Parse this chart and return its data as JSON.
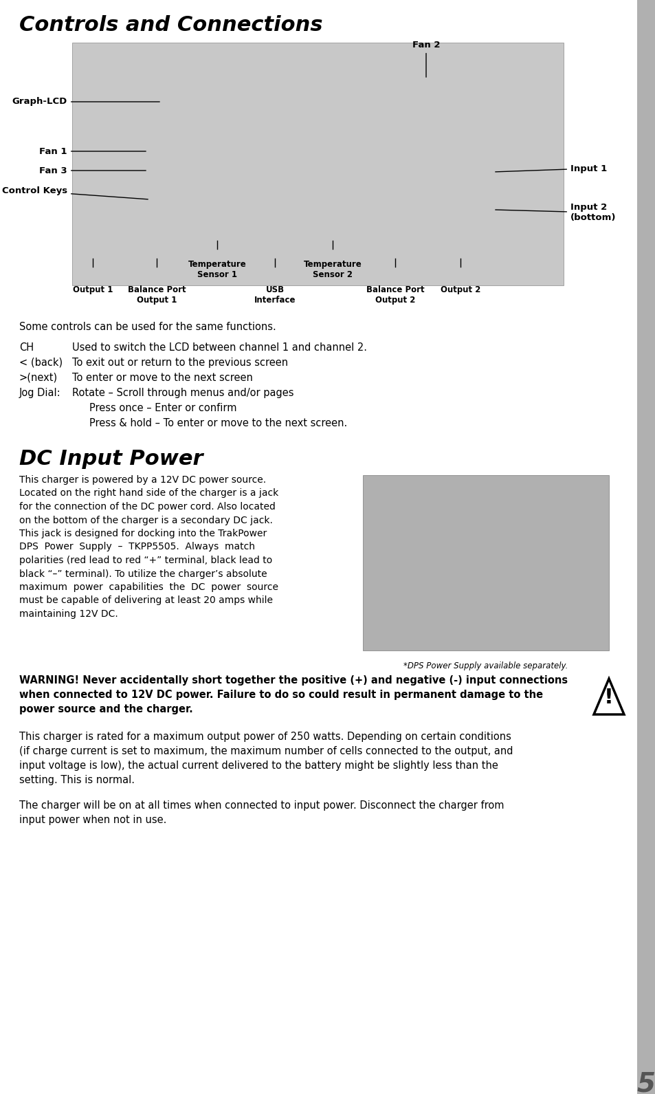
{
  "page_bg": "#ffffff",
  "sidebar_color": "#b0b0b0",
  "page_number": "5",
  "section1_title": "Controls and Connections",
  "section2_title": "DC Input Power",
  "controls_text_intro": "Some controls can be used for the same functions.",
  "ch_label": "CH",
  "ch_text": "Used to switch the LCD between channel 1 and channel 2.",
  "back_label": "< (back)",
  "back_text": "To exit out or return to the previous screen",
  "next_label": ">(next)",
  "next_text": "To enter or move to the next screen",
  "jog_label": "Jog Dial:",
  "jog_line1": "Rotate – Scroll through menus and/or pages",
  "jog_line2": "Press once – Enter or confirm",
  "jog_line3": "Press & hold – To enter or move to the next screen.",
  "dc_para1_lines": [
    "This charger is powered by a 12V DC power source.",
    "Located on the right hand side of the charger is a jack",
    "for the connection of the DC power cord. Also located",
    "on the bottom of the charger is a secondary DC jack.",
    "This jack is designed for docking into the TrakPower",
    "DPS  Power  Supply  –  TKPP5505.  Always  match",
    "polarities (red lead to red “+” terminal, black lead to",
    "black “–” terminal). To utilize the charger’s absolute",
    "maximum  power  capabilities  the  DC  power  source",
    "must be capable of delivering at least 20 amps while",
    "maintaining 12V DC."
  ],
  "dc_photo_caption": "*DPS Power Supply available separately.",
  "warning_text_lines": [
    "WARNING! Never accidentally short together the positive (+) and negative (-) input connections",
    "when connected to 12V DC power. Failure to do so could result in permanent damage to the",
    "power source and the charger."
  ],
  "para2_lines": [
    "This charger is rated for a maximum output power of 250 watts. Depending on certain conditions",
    "(if charge current is set to maximum, the maximum number of cells connected to the output, and",
    "input voltage is low), the actual current delivered to the battery might be slightly less than the",
    "setting. This is normal."
  ],
  "para3_lines": [
    "The charger will be on at all times when connected to input power. Disconnect the charger from",
    "input power when not in use."
  ],
  "label_graph_lcd": "Graph-LCD",
  "label_fan2": "Fan 2",
  "label_fan1": "Fan 1",
  "label_fan3": "Fan 3",
  "label_control_keys": "Control Keys",
  "label_input1": "Input 1",
  "label_input2": "Input 2\n(bottom)",
  "label_output1": "Output 1",
  "label_balance_output1": "Balance Port\nOutput 1",
  "label_temp1": "Temperature\nSensor 1",
  "label_usb": "USB\nInterface",
  "label_temp2": "Temperature\nSensor 2",
  "label_balance_output2": "Balance Port\nOutput 2",
  "label_output2": "Output 2"
}
